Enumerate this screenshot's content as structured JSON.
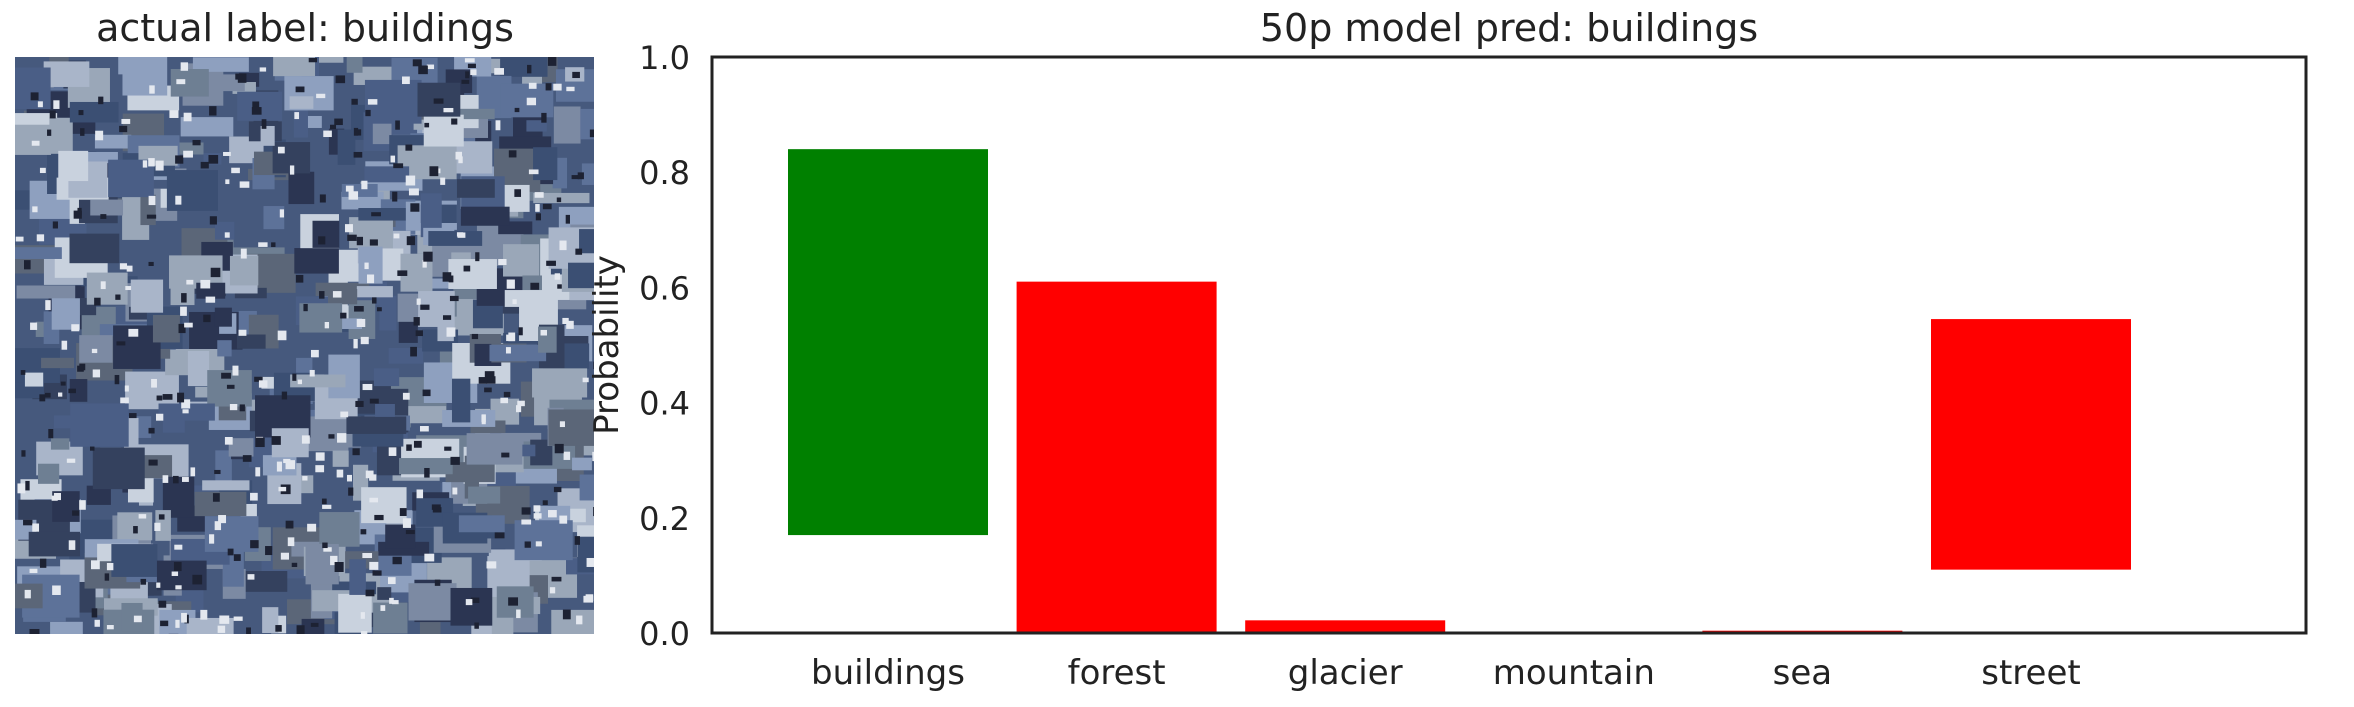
{
  "left_panel": {
    "title": "actual label: buildings",
    "image_description": "aerial view of dense blue-grey hillside buildings"
  },
  "chart_data": {
    "type": "bar",
    "title": "50p model pred: buildings",
    "xlabel": "",
    "ylabel": "Probability",
    "ylim": [
      0,
      1.0
    ],
    "yticks": [
      0.0,
      0.2,
      0.4,
      0.6,
      0.8,
      1.0
    ],
    "ytick_labels": [
      "0.0",
      "0.2",
      "0.4",
      "0.6",
      "0.8",
      "1.0"
    ],
    "categories": [
      "buildings",
      "forest",
      "glacier",
      "mountain",
      "sea",
      "street"
    ],
    "bars": [
      {
        "category": "buildings",
        "bottom": 0.17,
        "top": 0.84,
        "color": "#008000"
      },
      {
        "category": "forest",
        "bottom": 0.0,
        "top": 0.61,
        "color": "#ff0000"
      },
      {
        "category": "glacier",
        "bottom": 0.0,
        "top": 0.022,
        "color": "#ff0000"
      },
      {
        "category": "mountain",
        "bottom": 0.0,
        "top": 0.0,
        "color": "#ff0000"
      },
      {
        "category": "sea",
        "bottom": 0.0,
        "top": 0.004,
        "color": "#ff0000"
      },
      {
        "category": "street",
        "bottom": 0.11,
        "top": 0.545,
        "color": "#ff0000"
      }
    ],
    "grid": false
  },
  "colors": {
    "correct": "#008000",
    "incorrect": "#ff0000",
    "axis": "#222222"
  }
}
